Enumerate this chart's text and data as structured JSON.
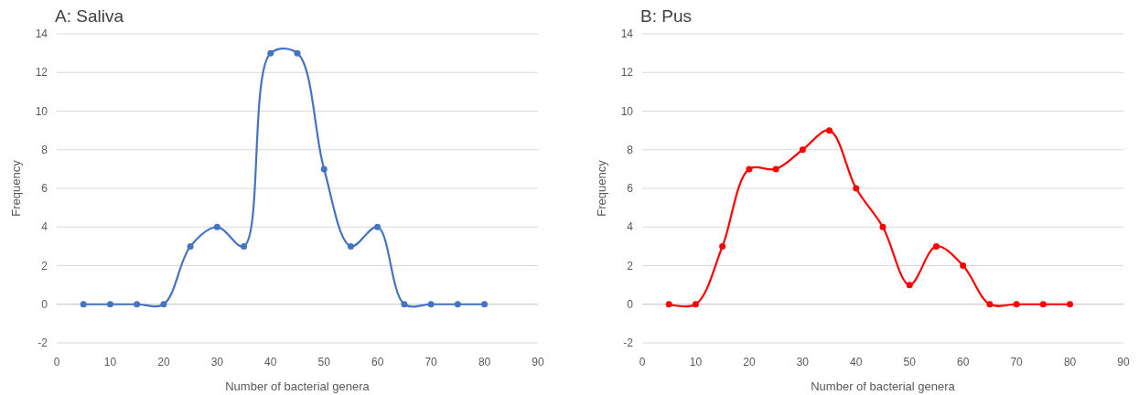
{
  "chart_data": [
    {
      "type": "line",
      "title": "A: Saliva",
      "xlabel": "Number of bacterial genera",
      "ylabel": "Frequency",
      "x": [
        5,
        10,
        15,
        20,
        25,
        30,
        35,
        40,
        45,
        50,
        55,
        60,
        65,
        70,
        75,
        80
      ],
      "series": [
        {
          "color": "#4472c4",
          "values": [
            0,
            0,
            0,
            0,
            3,
            4,
            3,
            13,
            13,
            7,
            3,
            4,
            0,
            0,
            0,
            0
          ]
        }
      ],
      "xlim": [
        0,
        90
      ],
      "xticks": [
        0,
        10,
        20,
        30,
        40,
        50,
        60,
        70,
        80,
        90
      ],
      "ylim": [
        -2,
        14
      ],
      "yticks": [
        -2,
        0,
        2,
        4,
        6,
        8,
        10,
        12,
        14
      ],
      "grid": "y",
      "marker": "circle",
      "line_style": "solid"
    },
    {
      "type": "line",
      "title": "B: Pus",
      "xlabel": "Number of bacterial genera",
      "ylabel": "Frequency",
      "x": [
        5,
        10,
        15,
        20,
        25,
        30,
        35,
        40,
        45,
        50,
        55,
        60,
        65,
        70,
        75,
        80
      ],
      "series": [
        {
          "color": "#ff0000",
          "values": [
            0,
            0,
            3,
            7,
            7,
            8,
            9,
            6,
            4,
            1,
            3,
            2,
            0,
            0,
            0,
            0
          ]
        }
      ],
      "xlim": [
        0,
        90
      ],
      "xticks": [
        0,
        10,
        20,
        30,
        40,
        50,
        60,
        70,
        80,
        90
      ],
      "ylim": [
        -2,
        14
      ],
      "yticks": [
        -2,
        0,
        2,
        4,
        6,
        8,
        10,
        12,
        14
      ],
      "grid": "y",
      "marker": "circle",
      "line_style": "solid"
    }
  ]
}
